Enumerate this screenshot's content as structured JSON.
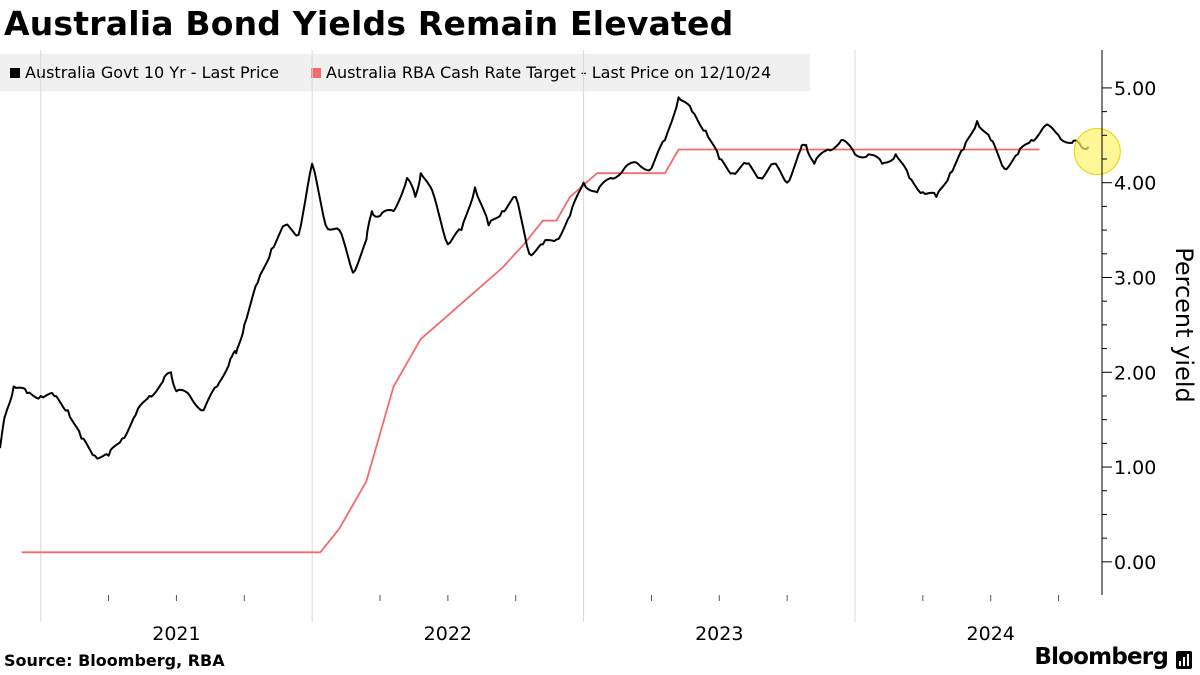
{
  "title": "Australia Bond Yields Remain Elevated",
  "source": "Source: Bloomberg, RBA",
  "brand": "Bloomberg",
  "colors": {
    "bond_line": "#000000",
    "rba_line": "#f36b6b",
    "legend_bg": "#f0f0f0",
    "grid": "#d9d9d9",
    "highlight_fill": "#fff26b",
    "highlight_stroke": "#e6d200"
  },
  "icons": {
    "brand": "bloomberg-terminal-icon"
  },
  "chart_data": {
    "type": "line",
    "title": "Australia Bond Yields Remain Elevated",
    "ylabel": "Percent yield",
    "xlabel": "",
    "ylim": [
      -0.35,
      5.4
    ],
    "yticks": [
      0,
      1,
      2,
      3,
      4,
      5
    ],
    "ytick_labels": [
      "0.00",
      "1.00",
      "2.00",
      "3.00",
      "4.00",
      "5.00"
    ],
    "xlim": [
      2020.85,
      2024.91
    ],
    "year_labels": [
      {
        "label": "2021",
        "at": 2021.5
      },
      {
        "label": "2022",
        "at": 2022.5
      },
      {
        "label": "2023",
        "at": 2023.5
      },
      {
        "label": "2024",
        "at": 2024.5
      }
    ],
    "grid": "vertical",
    "series": [
      {
        "name": "Australia Govt 10 Yr - Last Price",
        "color": "#000000",
        "x": [
          2020.85,
          2020.87,
          2020.9,
          2020.95,
          2021.0,
          2021.05,
          2021.1,
          2021.15,
          2021.2,
          2021.25,
          2021.3,
          2021.35,
          2021.4,
          2021.45,
          2021.48,
          2021.5,
          2021.55,
          2021.6,
          2021.65,
          2021.7,
          2021.72,
          2021.75,
          2021.8,
          2021.85,
          2021.9,
          2021.95,
          2022.0,
          2022.05,
          2022.1,
          2022.15,
          2022.2,
          2022.22,
          2022.25,
          2022.3,
          2022.35,
          2022.38,
          2022.4,
          2022.45,
          2022.5,
          2022.55,
          2022.6,
          2022.65,
          2022.7,
          2022.75,
          2022.8,
          2022.85,
          2022.9,
          2022.95,
          2023.0,
          2023.05,
          2023.1,
          2023.15,
          2023.2,
          2023.25,
          2023.3,
          2023.35,
          2023.4,
          2023.45,
          2023.5,
          2023.55,
          2023.6,
          2023.65,
          2023.7,
          2023.75,
          2023.8,
          2023.82,
          2023.85,
          2023.9,
          2023.95,
          2024.0,
          2024.05,
          2024.1,
          2024.15,
          2024.2,
          2024.25,
          2024.3,
          2024.35,
          2024.4,
          2024.45,
          2024.5,
          2024.55,
          2024.6,
          2024.65,
          2024.7,
          2024.75,
          2024.8,
          2024.83,
          2024.86
        ],
        "values": [
          1.2,
          1.55,
          1.85,
          1.78,
          1.75,
          1.75,
          1.6,
          1.3,
          1.12,
          1.12,
          1.3,
          1.55,
          1.75,
          1.9,
          2.0,
          1.8,
          1.75,
          1.6,
          1.85,
          2.15,
          2.2,
          2.5,
          2.95,
          3.3,
          3.55,
          3.45,
          4.2,
          3.55,
          3.5,
          3.05,
          3.4,
          3.7,
          3.65,
          3.7,
          4.05,
          3.85,
          4.1,
          3.85,
          3.35,
          3.5,
          3.95,
          3.55,
          3.7,
          3.85,
          3.25,
          3.35,
          3.4,
          3.65,
          4.0,
          3.9,
          4.05,
          4.15,
          4.2,
          4.15,
          4.45,
          4.9,
          4.75,
          4.55,
          4.25,
          4.1,
          4.2,
          4.05,
          4.2,
          4.0,
          4.35,
          4.4,
          4.2,
          4.35,
          4.45,
          4.3,
          4.3,
          4.2,
          4.3,
          4.05,
          3.9,
          3.85,
          4.1,
          4.35,
          4.65,
          4.45,
          4.15,
          4.3,
          4.45,
          4.6,
          4.5,
          4.42,
          4.4,
          4.38
        ]
      },
      {
        "name": "Australia RBA Cash Rate Target - Last Price on 12/10/24",
        "color": "#f36b6b",
        "x": [
          2020.93,
          2022.03,
          2022.1,
          2022.2,
          2022.3,
          2022.4,
          2022.5,
          2022.6,
          2022.7,
          2022.78,
          2022.85,
          2022.9,
          2022.95,
          2023.05,
          2023.2,
          2023.25,
          2023.3,
          2023.35,
          2023.45,
          2023.55,
          2023.65,
          2023.75,
          2023.85,
          2023.9,
          2023.95,
          2024.05,
          2024.2,
          2024.35,
          2024.55,
          2024.68
        ],
        "values": [
          0.1,
          0.1,
          0.35,
          0.85,
          1.85,
          2.35,
          2.6,
          2.85,
          3.1,
          3.35,
          3.6,
          3.6,
          3.85,
          4.1,
          4.1,
          4.1,
          4.1,
          4.35,
          4.35,
          4.35,
          4.35,
          4.35,
          4.35,
          4.35,
          4.35,
          4.35,
          4.35,
          4.35,
          4.35,
          4.35
        ]
      }
    ],
    "annotations": [
      {
        "type": "highlight-circle",
        "x": 2024.9,
        "y": 4.35
      }
    ]
  }
}
